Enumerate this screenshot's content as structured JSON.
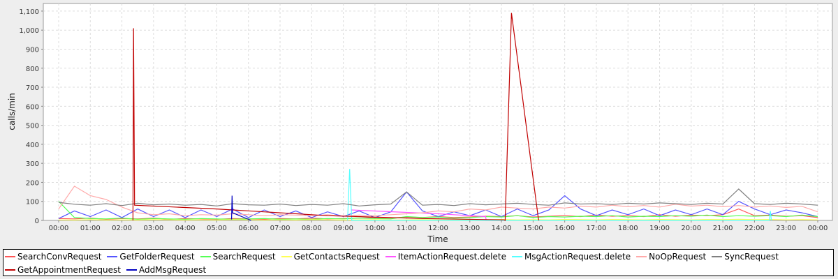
{
  "chart_data": {
    "type": "line",
    "xlabel": "Time",
    "ylabel": "calls/min",
    "ylim": [
      0,
      1140
    ],
    "xlim": [
      "00:00",
      "24:00"
    ],
    "grid": true,
    "legend_position": "bottom",
    "xticks": [
      "00:00",
      "01:00",
      "02:00",
      "03:00",
      "04:00",
      "05:00",
      "06:00",
      "07:00",
      "08:00",
      "09:00",
      "10:00",
      "11:00",
      "12:00",
      "13:00",
      "14:00",
      "15:00",
      "16:00",
      "17:00",
      "18:00",
      "19:00",
      "20:00",
      "21:00",
      "22:00",
      "23:00",
      "00:00"
    ],
    "yticks": [
      "0",
      "100",
      "200",
      "300",
      "400",
      "500",
      "600",
      "700",
      "800",
      "900",
      "1,000",
      "1,100"
    ],
    "x": [
      "00:00",
      "00:30",
      "01:00",
      "01:30",
      "02:00",
      "02:30",
      "03:00",
      "03:30",
      "04:00",
      "04:30",
      "05:00",
      "05:30",
      "06:00",
      "06:30",
      "07:00",
      "07:30",
      "08:00",
      "08:30",
      "09:00",
      "09:30",
      "10:00",
      "10:30",
      "11:00",
      "11:30",
      "12:00",
      "12:30",
      "13:00",
      "13:30",
      "14:00",
      "14:30",
      "15:00",
      "15:30",
      "16:00",
      "16:30",
      "17:00",
      "17:30",
      "18:00",
      "18:30",
      "19:00",
      "19:30",
      "20:00",
      "20:30",
      "21:00",
      "21:30",
      "22:00",
      "22:30",
      "23:00",
      "23:30",
      "24:00"
    ],
    "series": [
      {
        "name": "SearchConvRequest",
        "color": "#ff5555",
        "values": [
          10,
          8,
          12,
          6,
          10,
          8,
          12,
          6,
          10,
          8,
          6,
          10,
          8,
          6,
          10,
          8,
          12,
          8,
          10,
          12,
          15,
          12,
          18,
          15,
          20,
          15,
          18,
          22,
          20,
          25,
          18,
          22,
          25,
          20,
          28,
          22,
          25,
          20,
          30,
          22,
          28,
          25,
          30,
          60,
          25,
          28,
          22,
          25,
          15
        ]
      },
      {
        "name": "GetFolderRequest",
        "color": "#5555ff",
        "values": [
          10,
          50,
          20,
          55,
          15,
          60,
          20,
          55,
          15,
          55,
          20,
          60,
          15,
          55,
          20,
          50,
          15,
          45,
          20,
          50,
          15,
          45,
          150,
          50,
          20,
          45,
          25,
          55,
          20,
          60,
          25,
          55,
          130,
          60,
          25,
          55,
          30,
          60,
          25,
          55,
          30,
          60,
          30,
          100,
          60,
          30,
          55,
          40,
          20
        ]
      },
      {
        "name": "SearchRequest",
        "color": "#55ff55",
        "values": [
          100,
          15,
          10,
          8,
          12,
          6,
          10,
          8,
          6,
          10,
          8,
          6,
          8,
          10,
          6,
          8,
          6,
          10,
          8,
          12,
          10,
          8,
          20,
          15,
          18,
          12,
          15,
          20,
          18,
          25,
          15,
          20,
          18,
          22,
          20,
          25,
          18,
          22,
          20,
          25,
          22,
          28,
          20,
          25,
          22,
          25,
          20,
          28,
          20
        ]
      },
      {
        "name": "GetContactsRequest",
        "color": "#ffff55",
        "values": [
          3,
          2,
          4,
          2,
          3,
          2,
          4,
          3,
          2,
          3,
          2,
          4,
          3,
          2,
          3,
          2,
          4,
          3,
          2,
          3,
          4,
          2,
          3,
          4,
          3,
          2,
          4,
          3,
          5,
          3,
          4,
          3,
          5,
          4,
          3,
          5,
          4,
          3,
          5,
          4,
          3,
          5,
          4,
          6,
          4,
          5,
          3,
          4,
          3
        ]
      },
      {
        "name": "ItemActionRequest.delete",
        "color": "#ff55ff",
        "points": [
          [
            "09:15",
            55
          ],
          [
            "12:00",
            35
          ],
          [
            "13:30",
            20
          ],
          [
            "13:31",
            0
          ]
        ]
      },
      {
        "name": "MsgActionRequest.delete",
        "color": "#55ffff",
        "points": [
          [
            "09:08",
            0
          ],
          [
            "09:12",
            270
          ],
          [
            "09:16",
            0
          ],
          [
            "22:28",
            0
          ],
          [
            "22:30",
            50
          ],
          [
            "22:32",
            0
          ]
        ]
      },
      {
        "name": "NoOpRequest",
        "color": "#ffaaaa",
        "values": [
          60,
          180,
          130,
          110,
          70,
          40,
          30,
          35,
          25,
          30,
          28,
          35,
          30,
          25,
          30,
          28,
          25,
          30,
          22,
          28,
          25,
          30,
          35,
          40,
          50,
          45,
          60,
          55,
          70,
          65,
          60,
          70,
          65,
          75,
          70,
          80,
          72,
          78,
          70,
          85,
          75,
          80,
          72,
          78,
          70,
          76,
          68,
          74,
          45
        ]
      },
      {
        "name": "SyncRequest",
        "color": "#808080",
        "values": [
          95,
          85,
          80,
          88,
          78,
          90,
          82,
          86,
          80,
          84,
          76,
          88,
          82,
          80,
          86,
          78,
          84,
          80,
          88,
          76,
          82,
          86,
          150,
          80,
          84,
          78,
          88,
          82,
          86,
          90,
          84,
          80,
          92,
          86,
          88,
          84,
          90,
          86,
          92,
          88,
          84,
          90,
          86,
          165,
          88,
          84,
          90,
          86,
          80
        ]
      },
      {
        "name": "GetAppointmentRequest",
        "color": "#c00000",
        "points": [
          [
            "02:21",
            0
          ],
          [
            "02:22",
            1010
          ],
          [
            "02:24",
            80
          ],
          [
            "05:00",
            60
          ],
          [
            "08:30",
            25
          ],
          [
            "11:30",
            10
          ],
          [
            "14:05",
            3
          ],
          [
            "14:07",
            0
          ],
          [
            "14:19",
            1090
          ],
          [
            "15:10",
            10
          ],
          [
            "15:11",
            0
          ]
        ]
      },
      {
        "name": "AddMsgRequest",
        "color": "#0000c0",
        "points": [
          [
            "05:28",
            5
          ],
          [
            "05:29",
            130
          ],
          [
            "05:30",
            40
          ],
          [
            "06:05",
            0
          ]
        ]
      }
    ]
  }
}
